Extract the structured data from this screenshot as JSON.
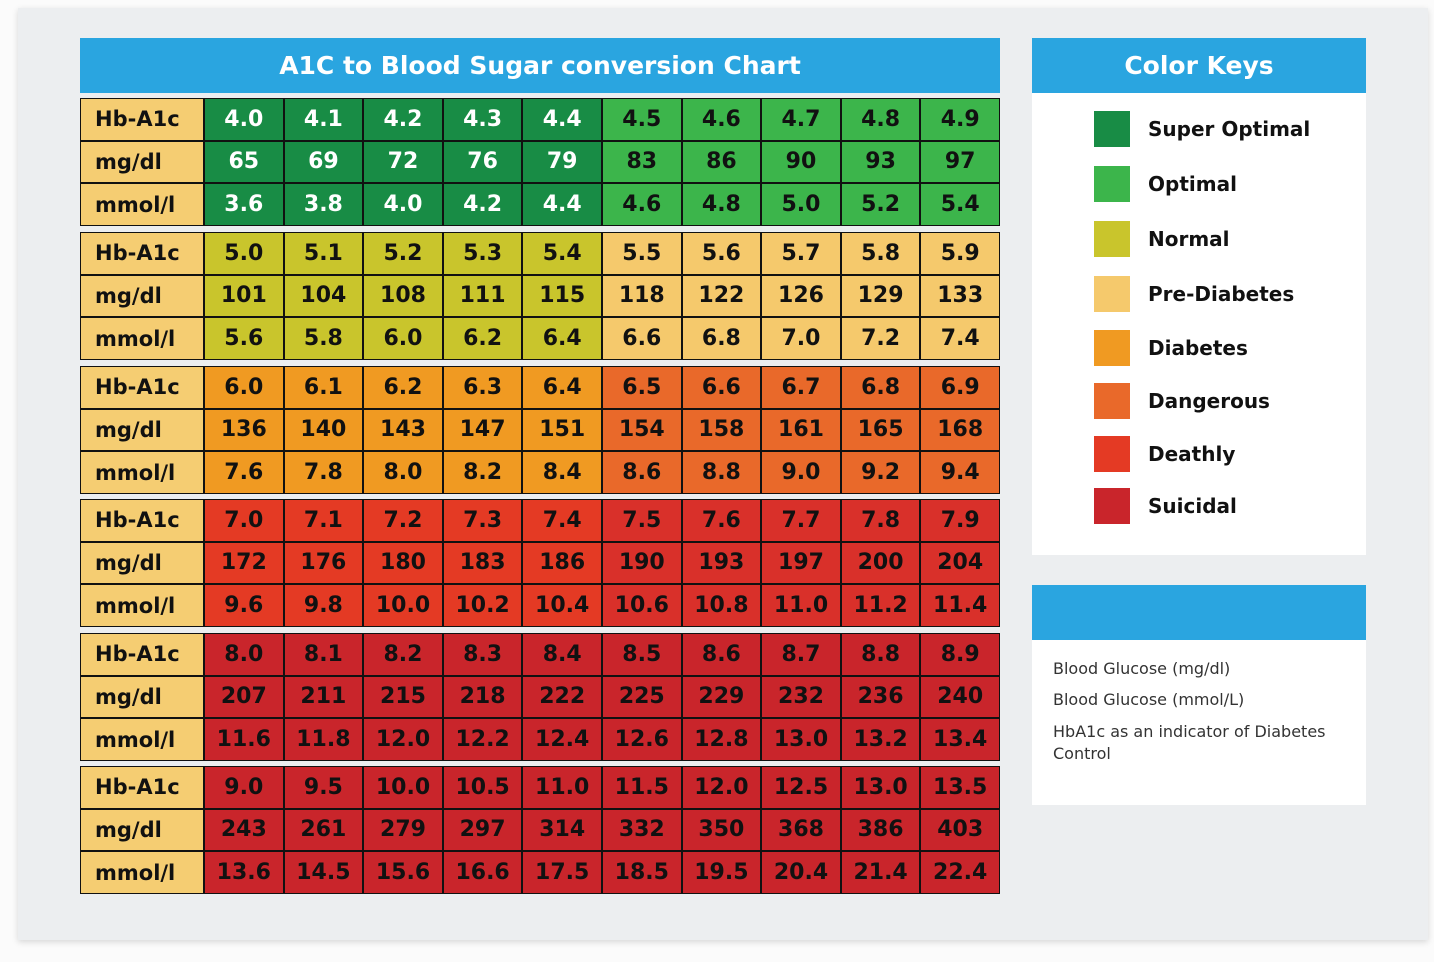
{
  "chart_data": {
    "type": "table",
    "title": "A1C to Blood Sugar conversion Chart",
    "row_labels": [
      "Hb-A1c",
      "mg/dl",
      "mmol/l"
    ],
    "blocks": [
      {
        "hba1c": [
          "4.0",
          "4.1",
          "4.2",
          "4.3",
          "4.4",
          "4.5",
          "4.6",
          "4.7",
          "4.8",
          "4.9"
        ],
        "mgdl": [
          "65",
          "69",
          "72",
          "76",
          "79",
          "83",
          "86",
          "90",
          "93",
          "97"
        ],
        "mmol": [
          "3.6",
          "3.8",
          "4.0",
          "4.2",
          "4.4",
          "4.6",
          "4.8",
          "5.0",
          "5.2",
          "5.4"
        ],
        "keys": [
          "Super Optimal",
          "Optimal"
        ]
      },
      {
        "hba1c": [
          "5.0",
          "5.1",
          "5.2",
          "5.3",
          "5.4",
          "5.5",
          "5.6",
          "5.7",
          "5.8",
          "5.9"
        ],
        "mgdl": [
          "101",
          "104",
          "108",
          "111",
          "115",
          "118",
          "122",
          "126",
          "129",
          "133"
        ],
        "mmol": [
          "5.6",
          "5.8",
          "6.0",
          "6.2",
          "6.4",
          "6.6",
          "6.8",
          "7.0",
          "7.2",
          "7.4"
        ],
        "keys": [
          "Normal",
          "Pre-Diabetes"
        ]
      },
      {
        "hba1c": [
          "6.0",
          "6.1",
          "6.2",
          "6.3",
          "6.4",
          "6.5",
          "6.6",
          "6.7",
          "6.8",
          "6.9"
        ],
        "mgdl": [
          "136",
          "140",
          "143",
          "147",
          "151",
          "154",
          "158",
          "161",
          "165",
          "168"
        ],
        "mmol": [
          "7.6",
          "7.8",
          "8.0",
          "8.2",
          "8.4",
          "8.6",
          "8.8",
          "9.0",
          "9.2",
          "9.4"
        ],
        "keys": [
          "Diabetes",
          "Dangerous"
        ]
      },
      {
        "hba1c": [
          "7.0",
          "7.1",
          "7.2",
          "7.3",
          "7.4",
          "7.5",
          "7.6",
          "7.7",
          "7.8",
          "7.9"
        ],
        "mgdl": [
          "172",
          "176",
          "180",
          "183",
          "186",
          "190",
          "193",
          "197",
          "200",
          "204"
        ],
        "mmol": [
          "9.6",
          "9.8",
          "10.0",
          "10.2",
          "10.4",
          "10.6",
          "10.8",
          "11.0",
          "11.2",
          "11.4"
        ],
        "keys": [
          "Deathly",
          "Deathly"
        ]
      },
      {
        "hba1c": [
          "8.0",
          "8.1",
          "8.2",
          "8.3",
          "8.4",
          "8.5",
          "8.6",
          "8.7",
          "8.8",
          "8.9"
        ],
        "mgdl": [
          "207",
          "211",
          "215",
          "218",
          "222",
          "225",
          "229",
          "232",
          "236",
          "240"
        ],
        "mmol": [
          "11.6",
          "11.8",
          "12.0",
          "12.2",
          "12.4",
          "12.6",
          "12.8",
          "13.0",
          "13.2",
          "13.4"
        ],
        "keys": [
          "Suicidal",
          "Suicidal"
        ]
      },
      {
        "hba1c": [
          "9.0",
          "9.5",
          "10.0",
          "10.5",
          "11.0",
          "11.5",
          "12.0",
          "12.5",
          "13.0",
          "13.5"
        ],
        "mgdl": [
          "243",
          "261",
          "279",
          "297",
          "314",
          "332",
          "350",
          "368",
          "386",
          "403"
        ],
        "mmol": [
          "13.6",
          "14.5",
          "15.6",
          "16.6",
          "17.5",
          "18.5",
          "19.5",
          "20.4",
          "21.4",
          "22.4"
        ],
        "keys": [
          "Suicidal",
          "Suicidal"
        ]
      }
    ]
  },
  "color_keys": {
    "title": "Color Keys",
    "items": [
      {
        "label": "Super Optimal",
        "color": "#188c45",
        "text": "#ffffff"
      },
      {
        "label": "Optimal",
        "color": "#3cb54b",
        "text": "#111111"
      },
      {
        "label": "Normal",
        "color": "#c9c52c",
        "text": "#111111"
      },
      {
        "label": "Pre-Diabetes",
        "color": "#f5c96c",
        "text": "#111111"
      },
      {
        "label": "Diabetes",
        "color": "#f09a22",
        "text": "#111111"
      },
      {
        "label": "Dangerous",
        "color": "#e9692a",
        "text": "#111111"
      },
      {
        "label": "Deathly",
        "color": "#e43a24",
        "text": "#111111"
      },
      {
        "label": "Suicidal",
        "color": "#c9252b",
        "text": "#111111"
      }
    ]
  },
  "info": {
    "lines": [
      "Blood Glucose (mg/dl)",
      "Blood Glucose (mmol/L)",
      "HbA1c as an indicator of Diabetes Control"
    ]
  }
}
